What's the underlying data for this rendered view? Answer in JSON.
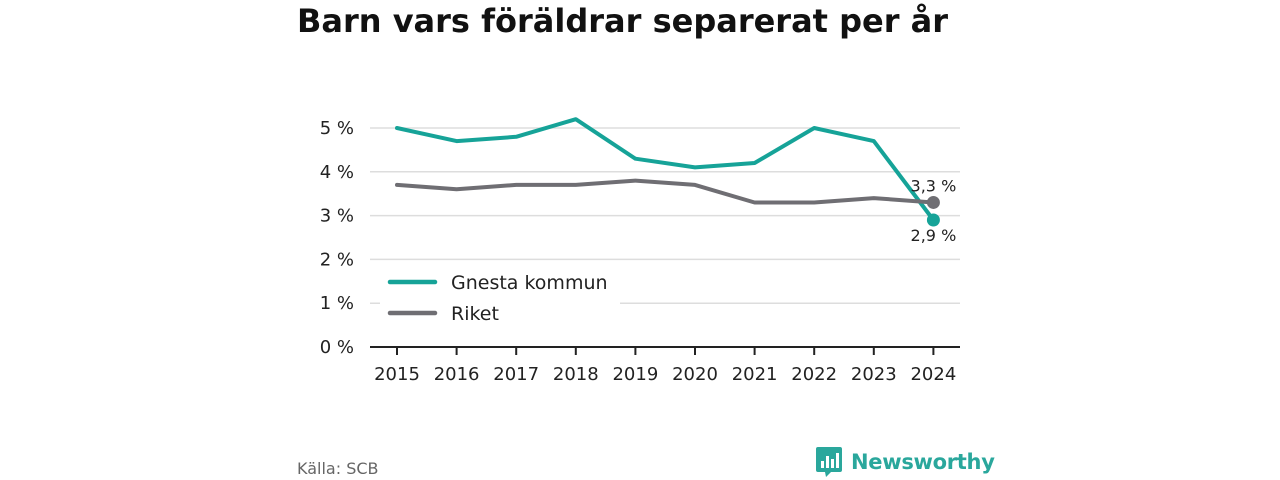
{
  "title": "Barn vars föräldrar separerat per år",
  "source": "Källa: SCB",
  "brand": {
    "name": "Newsworthy",
    "icon": "newsworthy-logo-icon"
  },
  "colors": {
    "gnesta": "#16a398",
    "riket": "#6f6e73",
    "axis": "#222222",
    "grid": "#dddddd"
  },
  "chart_data": {
    "type": "line",
    "x": [
      "2015",
      "2016",
      "2017",
      "2018",
      "2019",
      "2020",
      "2021",
      "2022",
      "2023",
      "2024"
    ],
    "series": [
      {
        "name": "Gnesta kommun",
        "color": "#16a398",
        "values": [
          5.0,
          4.7,
          4.8,
          5.2,
          4.3,
          4.1,
          4.2,
          5.0,
          4.7,
          2.9
        ],
        "end_label": "2,9 %"
      },
      {
        "name": "Riket",
        "color": "#6f6e73",
        "values": [
          3.7,
          3.6,
          3.7,
          3.7,
          3.8,
          3.7,
          3.3,
          3.3,
          3.4,
          3.3
        ],
        "end_label": "3,3 %"
      }
    ],
    "yticks": [
      "0 %",
      "1 %",
      "2 %",
      "3 %",
      "4 %",
      "5 %"
    ],
    "ylim": [
      0,
      5
    ],
    "grid": true,
    "legend_position": "bottom-left"
  }
}
